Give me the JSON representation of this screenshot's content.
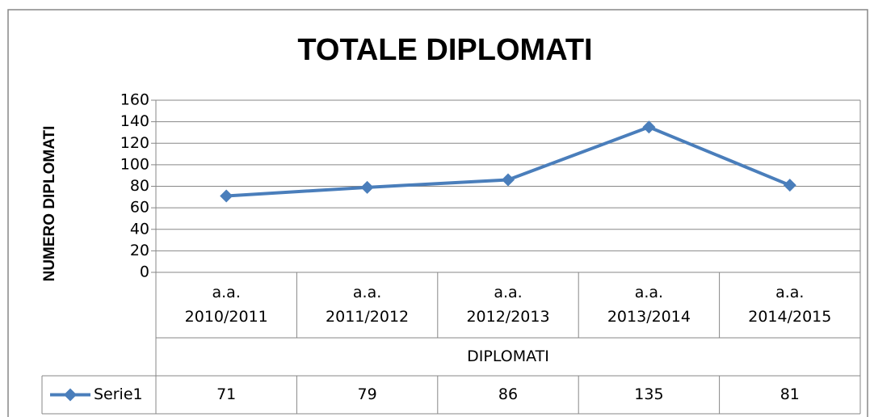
{
  "chart_data": {
    "type": "line",
    "title": "TOTALE DIPLOMATI",
    "y_label": "NUMERO DIPLOMATI",
    "x_label": "DIPLOMATI",
    "categories": [
      "a.a. 2010/2011",
      "a.a. 2011/2012",
      "a.a. 2012/2013",
      "a.a. 2013/2014",
      "a.a. 2014/2015"
    ],
    "series": [
      {
        "name": "Serie1",
        "color": "#4a7ebb",
        "values": [
          71,
          79,
          86,
          135,
          81
        ]
      }
    ],
    "ylim": [
      0,
      160
    ],
    "yticks": [
      0,
      20,
      40,
      60,
      80,
      100,
      120,
      140,
      160
    ],
    "grid": true,
    "data_table": true
  }
}
